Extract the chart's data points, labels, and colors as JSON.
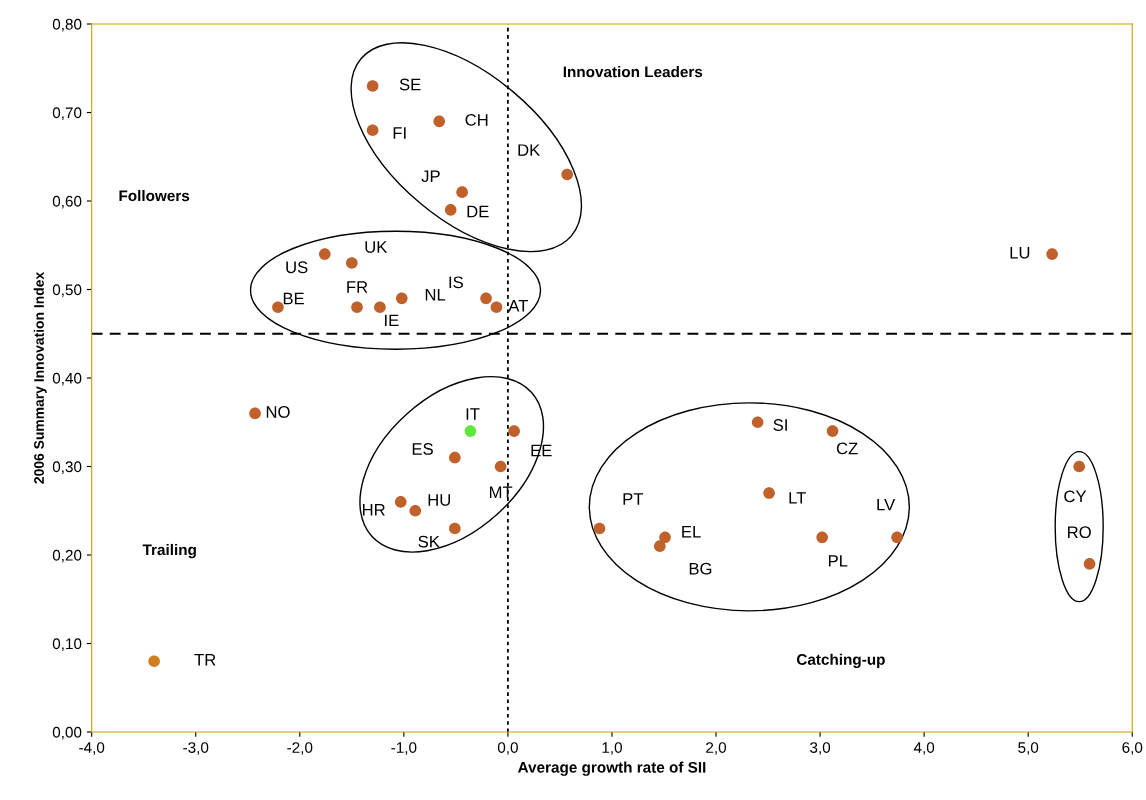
{
  "chart_data": {
    "type": "scatter",
    "xlabel": "Average growth rate of SII",
    "ylabel": "2006 Summary Innovation Index",
    "xlim": [
      -4.0,
      6.0
    ],
    "ylim": [
      0.0,
      0.8
    ],
    "xticks": [
      {
        "value": -4,
        "label": "-4,0"
      },
      {
        "value": -3,
        "label": "-3,0"
      },
      {
        "value": -2,
        "label": "-2,0"
      },
      {
        "value": -1,
        "label": "-1,0"
      },
      {
        "value": 0,
        "label": "0,0"
      },
      {
        "value": 1,
        "label": "1,0"
      },
      {
        "value": 2,
        "label": "2,0"
      },
      {
        "value": 3,
        "label": "3,0"
      },
      {
        "value": 4,
        "label": "4,0"
      },
      {
        "value": 5,
        "label": "5,0"
      },
      {
        "value": 6,
        "label": "6,0"
      }
    ],
    "yticks": [
      {
        "value": 0,
        "label": "0,00"
      },
      {
        "value": 0.1,
        "label": "0,10"
      },
      {
        "value": 0.2,
        "label": "0,20"
      },
      {
        "value": 0.3,
        "label": "0,30"
      },
      {
        "value": 0.4,
        "label": "0,40"
      },
      {
        "value": 0.5,
        "label": "0,50"
      },
      {
        "value": 0.6,
        "label": "0,60"
      },
      {
        "value": 0.7,
        "label": "0,70"
      },
      {
        "value": 0.8,
        "label": "0,80"
      }
    ],
    "grid": false,
    "marker": "circle",
    "ref_lines": [
      {
        "axis": "x",
        "value": 0,
        "line_style": "dotted",
        "color": "#000000"
      },
      {
        "axis": "y",
        "value": 0.45,
        "line_style": "dashed",
        "color": "#000000"
      }
    ],
    "annotations": [
      "Innovation Leaders",
      "Followers",
      "Trailing",
      "Catching-up"
    ],
    "series": [
      {
        "name": "SE",
        "color": "#c0602a",
        "x": [
          -1.3
        ],
        "values": [
          0.73
        ]
      },
      {
        "name": "FI",
        "color": "#c0602a",
        "x": [
          -1.3
        ],
        "values": [
          0.68
        ]
      },
      {
        "name": "CH",
        "color": "#c0602a",
        "x": [
          -0.66
        ],
        "values": [
          0.69
        ]
      },
      {
        "name": "DK",
        "color": "#c0602a",
        "x": [
          0.57
        ],
        "values": [
          0.63
        ]
      },
      {
        "name": "JP",
        "color": "#c0602a",
        "x": [
          -0.44
        ],
        "values": [
          0.61
        ]
      },
      {
        "name": "DE",
        "color": "#c0602a",
        "x": [
          -0.55
        ],
        "values": [
          0.59
        ]
      },
      {
        "name": "US",
        "color": "#c0602a",
        "x": [
          -1.76
        ],
        "values": [
          0.54
        ]
      },
      {
        "name": "UK",
        "color": "#c0602a",
        "x": [
          -1.5
        ],
        "values": [
          0.53
        ]
      },
      {
        "name": "BE",
        "color": "#c0602a",
        "x": [
          -2.21
        ],
        "values": [
          0.48
        ]
      },
      {
        "name": "FR",
        "color": "#c0602a",
        "x": [
          -1.45
        ],
        "values": [
          0.48
        ]
      },
      {
        "name": "IE",
        "color": "#c0602a",
        "x": [
          -1.23
        ],
        "values": [
          0.48
        ]
      },
      {
        "name": "NL",
        "color": "#c0602a",
        "x": [
          -1.02
        ],
        "values": [
          0.49
        ]
      },
      {
        "name": "IS",
        "color": "#c0602a",
        "x": [
          -0.21
        ],
        "values": [
          0.49
        ]
      },
      {
        "name": "AT",
        "color": "#c0602a",
        "x": [
          -0.11
        ],
        "values": [
          0.48
        ]
      },
      {
        "name": "NO",
        "color": "#c0602a",
        "x": [
          -2.43
        ],
        "values": [
          0.36
        ]
      },
      {
        "name": "IT",
        "color": "#5ee83a",
        "x": [
          -0.36
        ],
        "values": [
          0.34
        ]
      },
      {
        "name": "EE",
        "color": "#c0602a",
        "x": [
          0.06
        ],
        "values": [
          0.34
        ]
      },
      {
        "name": "ES",
        "color": "#c0602a",
        "x": [
          -0.51
        ],
        "values": [
          0.31
        ]
      },
      {
        "name": "MT",
        "color": "#c0602a",
        "x": [
          -0.07
        ],
        "values": [
          0.3
        ]
      },
      {
        "name": "HR",
        "color": "#c0602a",
        "x": [
          -1.03
        ],
        "values": [
          0.26
        ]
      },
      {
        "name": "HU",
        "color": "#c0602a",
        "x": [
          -0.89
        ],
        "values": [
          0.25
        ]
      },
      {
        "name": "SK",
        "color": "#c0602a",
        "x": [
          -0.51
        ],
        "values": [
          0.23
        ]
      },
      {
        "name": "SI",
        "color": "#c0602a",
        "x": [
          2.4
        ],
        "values": [
          0.35
        ]
      },
      {
        "name": "CZ",
        "color": "#c0602a",
        "x": [
          3.12
        ],
        "values": [
          0.34
        ]
      },
      {
        "name": "LT",
        "color": "#c0602a",
        "x": [
          2.51
        ],
        "values": [
          0.27
        ]
      },
      {
        "name": "PT",
        "color": "#c0602a",
        "x": [
          0.88
        ],
        "values": [
          0.23
        ]
      },
      {
        "name": "EL",
        "color": "#c0602a",
        "x": [
          1.51
        ],
        "values": [
          0.22
        ]
      },
      {
        "name": "BG",
        "color": "#c0602a",
        "x": [
          1.46
        ],
        "values": [
          0.21
        ]
      },
      {
        "name": "PL",
        "color": "#c0602a",
        "x": [
          3.02
        ],
        "values": [
          0.22
        ]
      },
      {
        "name": "LV",
        "color": "#c0602a",
        "x": [
          3.74
        ],
        "values": [
          0.22
        ]
      },
      {
        "name": "CY",
        "color": "#c0602a",
        "x": [
          5.49
        ],
        "values": [
          0.3
        ]
      },
      {
        "name": "RO",
        "color": "#c0602a",
        "x": [
          5.59
        ],
        "values": [
          0.19
        ]
      },
      {
        "name": "LU",
        "color": "#c0602a",
        "x": [
          5.23
        ],
        "values": [
          0.54
        ]
      },
      {
        "name": "TR",
        "color": "#d08020",
        "x": [
          -3.4
        ],
        "values": [
          0.08
        ]
      }
    ]
  }
}
